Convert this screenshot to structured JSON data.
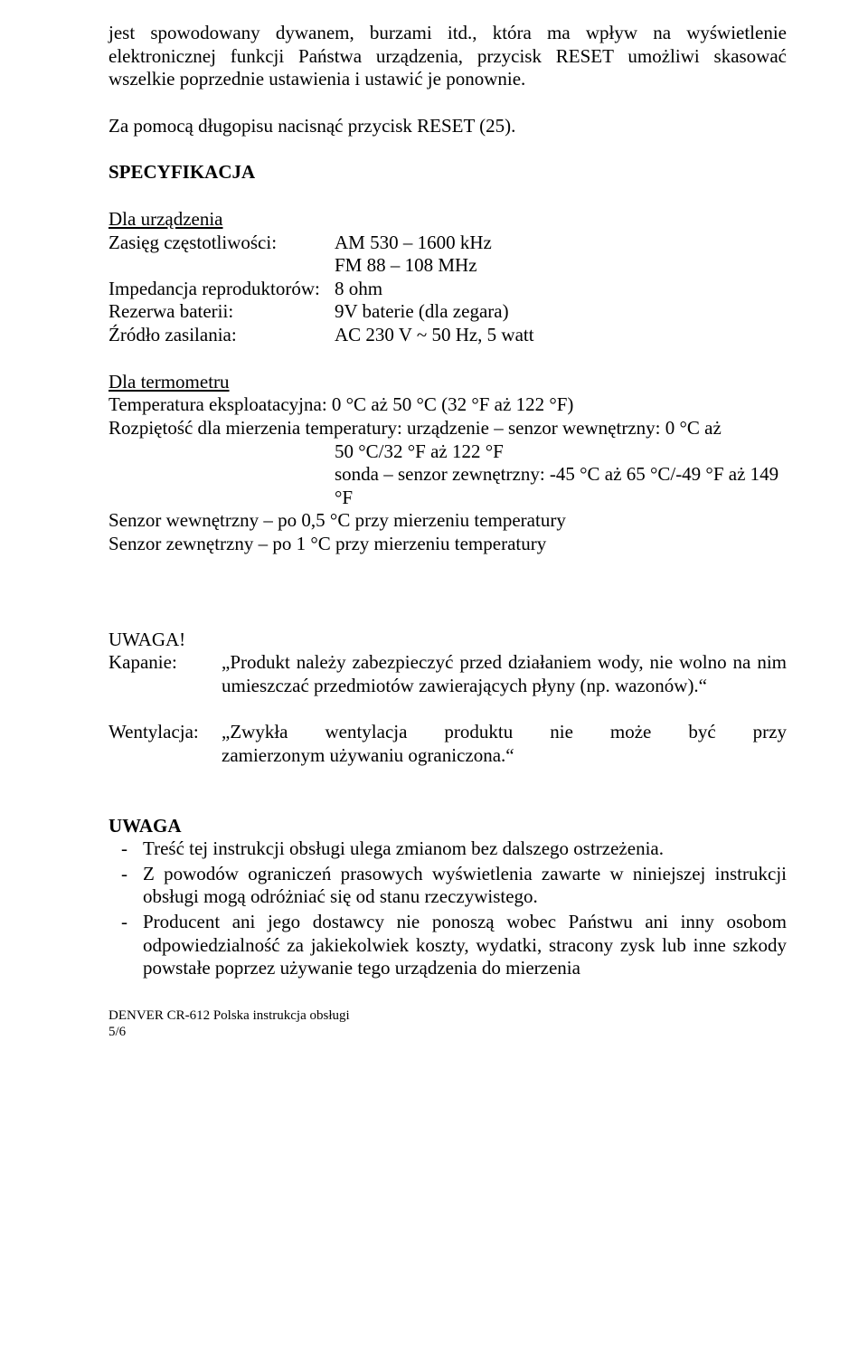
{
  "intro": {
    "p1": "jest spowodowany dywanem, burzami itd., która ma wpływ na wyświetlenie elektronicznej funkcji Państwa urządzenia, przycisk RESET umożliwi skasować wszelkie poprzednie ustawienia i ustawić je ponownie.",
    "p2": "Za pomocą długopisu nacisnąć przycisk RESET (25)."
  },
  "spec": {
    "title": "SPECYFIKACJA",
    "device_hdr": "Dla urządzenia",
    "rows": [
      {
        "label": "Zasięg częstotliwości:",
        "value": "AM 530 – 1600 kHz"
      },
      {
        "label": "",
        "value": "FM 88 – 108 MHz"
      },
      {
        "label": "Impedancja reproduktorów:",
        "value": "8 ohm"
      },
      {
        "label": "Rezerwa baterii:",
        "value": "9V baterie (dla zegara)"
      },
      {
        "label": "Źródło zasilania:",
        "value": "AC 230 V ~ 50 Hz, 5 watt"
      }
    ],
    "thermo_hdr": "Dla termometru",
    "thermo_line1": "Temperatura eksploatacyjna: 0 °C aż 50 °C (32 °F aż 122 °F)",
    "thermo_line2": "Rozpiętość dla mierzenia temperatury: urządzenie – senzor wewnętrzny: 0 °C aż",
    "thermo_line3": "50 °C/32 °F aż 122 °F",
    "thermo_line4": "sonda – senzor zewnętrzny: -45 °C aż 65 °C/-49 °F aż 149 °F",
    "thermo_line5": "Senzor wewnętrzny – po 0,5 °C przy mierzeniu temperatury",
    "thermo_line6": "Senzor zewnętrzny – po 1 °C przy mierzeniu temperatury"
  },
  "warn1": {
    "title": "UWAGA!",
    "r1_label": "Kapanie:",
    "r1_body": "„Produkt należy zabezpieczyć przed działaniem wody, nie wolno na nim umieszczać przedmiotów zawierających płyny (np. wazonów).“",
    "r2_label": "Wentylacja:",
    "r2_line1": "„Zwykła wentylacja produktu nie może być przy",
    "r2_line2": "zamierzonym używaniu ograniczona.“"
  },
  "warn2": {
    "title": "UWAGA",
    "items": [
      "Treść tej instrukcji obsługi ulega zmianom bez dalszego ostrzeżenia.",
      "Z powodów ograniczeń prasowych wyświetlenia zawarte w niniejszej instrukcji obsługi mogą odróżniać się od stanu rzeczywistego.",
      "Producent ani jego dostawcy nie ponoszą wobec Państwu ani inny osobom odpowiedzialność za jakiekolwiek koszty, wydatki, stracony zysk lub inne szkody powstałe poprzez używanie tego urządzenia do mierzenia"
    ]
  },
  "footer": {
    "line": "DENVER CR-612 Polska instrukcja obsługi",
    "page": "5/6"
  }
}
